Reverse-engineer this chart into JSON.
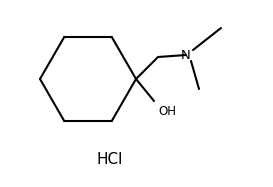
{
  "background": "#ffffff",
  "line_color": "#000000",
  "line_width": 1.5,
  "fig_width": 2.73,
  "fig_height": 1.87,
  "dpi": 100,
  "hcl_text": "HCl",
  "oh_text": "OH",
  "n_text": "N"
}
